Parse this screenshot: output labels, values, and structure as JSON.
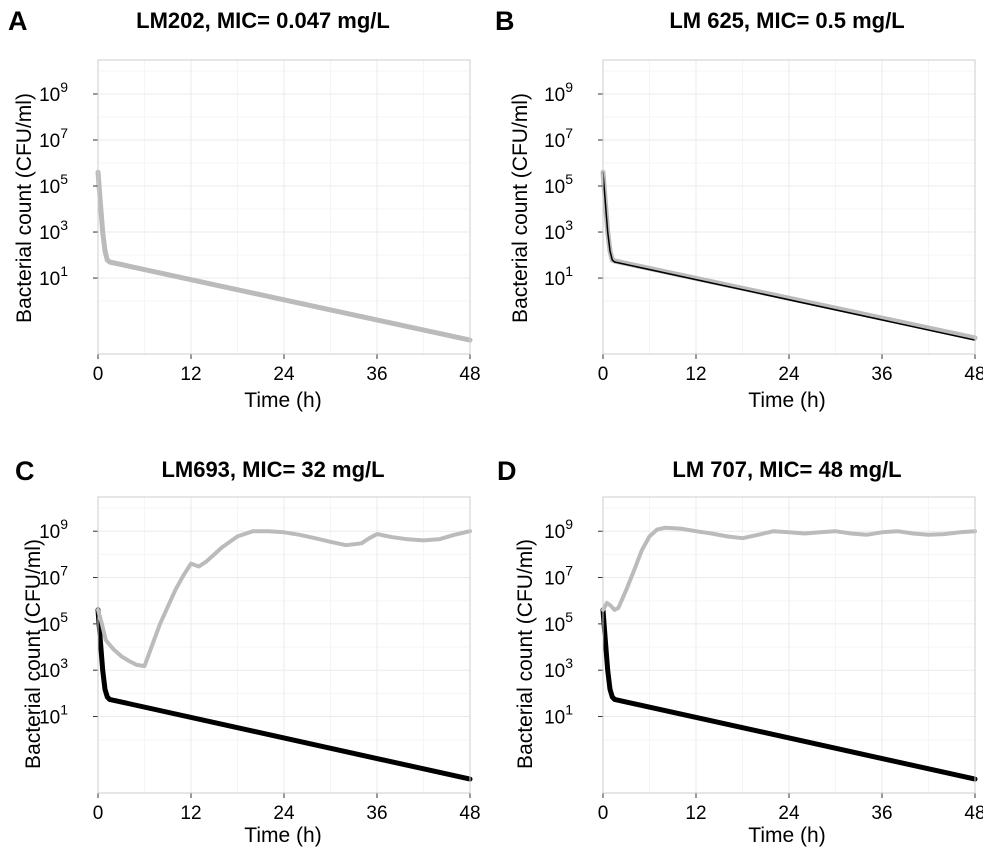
{
  "chart_data": [
    {
      "type": "line",
      "panel": "A",
      "title": "LM202, MIC= 0.047 mg/L",
      "xlabel": "Time (h)",
      "ylabel": "Bacterial count (CFU/ml)",
      "xlim": [
        0,
        48
      ],
      "xticks": [
        "0",
        "12",
        "24",
        "36",
        "48"
      ],
      "yscale": "log",
      "ylim": [
        0.005,
        30000000000.0
      ],
      "yticks": [
        {
          "base": "10",
          "exp": "1",
          "value": 10
        },
        {
          "base": "10",
          "exp": "3",
          "value": 1000
        },
        {
          "base": "10",
          "exp": "5",
          "value": 100000
        },
        {
          "base": "10",
          "exp": "7",
          "value": 10000000
        },
        {
          "base": "10",
          "exp": "9",
          "value": 1000000000
        }
      ],
      "grid": true,
      "series": [
        {
          "color": "#000000",
          "width": 2,
          "x": [
            0,
            0.3,
            0.6,
            0.9,
            1.2,
            1.5,
            48
          ],
          "y": [
            400000,
            20000,
            1000,
            150,
            60,
            50,
            0.02
          ]
        },
        {
          "color": "#bbbbbb",
          "width": 5,
          "x": [
            0,
            0.3,
            0.6,
            0.9,
            1.2,
            1.5,
            48
          ],
          "y": [
            400000,
            20000,
            1000,
            150,
            60,
            50,
            0.02
          ]
        }
      ]
    },
    {
      "type": "line",
      "panel": "B",
      "title": "LM 625, MIC= 0.5 mg/L",
      "xlabel": "Time (h)",
      "ylabel": "Bacterial count (CFU/ml)",
      "xlim": [
        0,
        48
      ],
      "xticks": [
        "0",
        "12",
        "24",
        "36",
        "48"
      ],
      "yscale": "log",
      "ylim": [
        0.005,
        30000000000.0
      ],
      "yticks": [
        {
          "base": "10",
          "exp": "1",
          "value": 10
        },
        {
          "base": "10",
          "exp": "3",
          "value": 1000
        },
        {
          "base": "10",
          "exp": "5",
          "value": 100000
        },
        {
          "base": "10",
          "exp": "7",
          "value": 10000000
        },
        {
          "base": "10",
          "exp": "9",
          "value": 1000000000
        }
      ],
      "grid": true,
      "series": [
        {
          "color": "#bbbbbb",
          "width": 5,
          "x": [
            0,
            0.3,
            0.6,
            0.9,
            1.2,
            1.5,
            48
          ],
          "y": [
            400000,
            20000,
            1000,
            150,
            60,
            55,
            0.025
          ]
        },
        {
          "color": "#000000",
          "width": 1.5,
          "x": [
            0,
            0.3,
            0.6,
            0.9,
            1.2,
            1.5,
            48
          ],
          "y": [
            400000,
            20000,
            1000,
            150,
            60,
            50,
            0.02
          ]
        }
      ]
    },
    {
      "type": "line",
      "panel": "C",
      "title": "LM693, MIC= 32 mg/L",
      "xlabel": "Time (h)",
      "ylabel": "Bacterial count (CFU/ml)",
      "xlim": [
        0,
        48
      ],
      "xticks": [
        "0",
        "12",
        "24",
        "36",
        "48"
      ],
      "yscale": "log",
      "ylim": [
        0.005,
        30000000000.0
      ],
      "yticks": [
        {
          "base": "10",
          "exp": "1",
          "value": 10
        },
        {
          "base": "10",
          "exp": "3",
          "value": 1000
        },
        {
          "base": "10",
          "exp": "5",
          "value": 100000
        },
        {
          "base": "10",
          "exp": "7",
          "value": 10000000
        },
        {
          "base": "10",
          "exp": "9",
          "value": 1000000000
        }
      ],
      "grid": true,
      "series": [
        {
          "color": "#000000",
          "width": 5,
          "x": [
            0,
            0.3,
            0.6,
            0.9,
            1.2,
            1.5,
            48
          ],
          "y": [
            400000,
            20000,
            1000,
            150,
            70,
            55,
            0.02
          ]
        },
        {
          "color": "#bbbbbb",
          "width": 4,
          "x": [
            0,
            0.5,
            1,
            2,
            3,
            4,
            5,
            6,
            8,
            10,
            11,
            12,
            13,
            14,
            16,
            18,
            20,
            22,
            24,
            26,
            28,
            30,
            32,
            34,
            35,
            36,
            38,
            40,
            42,
            44,
            46,
            48
          ],
          "y": [
            400000,
            100000,
            20000,
            8000,
            4000,
            2500,
            1700,
            1500,
            100000,
            3000000,
            12000000,
            40000000,
            30000000,
            50000000,
            200000000,
            600000000,
            1000000000,
            1000000000,
            900000000,
            700000000,
            500000000,
            350000000,
            250000000,
            300000000,
            500000000,
            750000000,
            550000000,
            450000000,
            400000000,
            450000000,
            700000000,
            1000000000
          ]
        }
      ]
    },
    {
      "type": "line",
      "panel": "D",
      "title": "LM 707, MIC= 48 mg/L",
      "xlabel": "Time (h)",
      "ylabel": "Bacterial count (CFU/ml)",
      "xlim": [
        0,
        48
      ],
      "xticks": [
        "0",
        "12",
        "24",
        "36",
        "48"
      ],
      "yscale": "log",
      "ylim": [
        0.005,
        30000000000.0
      ],
      "yticks": [
        {
          "base": "10",
          "exp": "1",
          "value": 10
        },
        {
          "base": "10",
          "exp": "3",
          "value": 1000
        },
        {
          "base": "10",
          "exp": "5",
          "value": 100000
        },
        {
          "base": "10",
          "exp": "7",
          "value": 10000000
        },
        {
          "base": "10",
          "exp": "9",
          "value": 1000000000
        }
      ],
      "grid": true,
      "series": [
        {
          "color": "#000000",
          "width": 5,
          "x": [
            0,
            0.3,
            0.6,
            0.9,
            1.2,
            1.5,
            48
          ],
          "y": [
            400000,
            20000,
            1000,
            150,
            70,
            55,
            0.02
          ]
        },
        {
          "color": "#bbbbbb",
          "width": 4,
          "x": [
            0,
            0.5,
            1,
            1.5,
            2,
            3,
            4,
            5,
            6,
            7,
            8,
            10,
            12,
            14,
            16,
            18,
            20,
            22,
            24,
            26,
            28,
            30,
            32,
            34,
            36,
            38,
            40,
            42,
            44,
            46,
            48
          ],
          "y": [
            400000,
            800000,
            600000,
            400000,
            500000,
            3000000,
            20000000,
            150000000,
            600000000,
            1200000000,
            1400000000,
            1300000000,
            1000000000,
            800000000,
            600000000,
            500000000,
            700000000,
            1000000000,
            900000000,
            800000000,
            900000000,
            1000000000,
            800000000,
            700000000,
            900000000,
            1000000000,
            800000000,
            700000000,
            750000000,
            900000000,
            1000000000
          ]
        }
      ]
    }
  ]
}
